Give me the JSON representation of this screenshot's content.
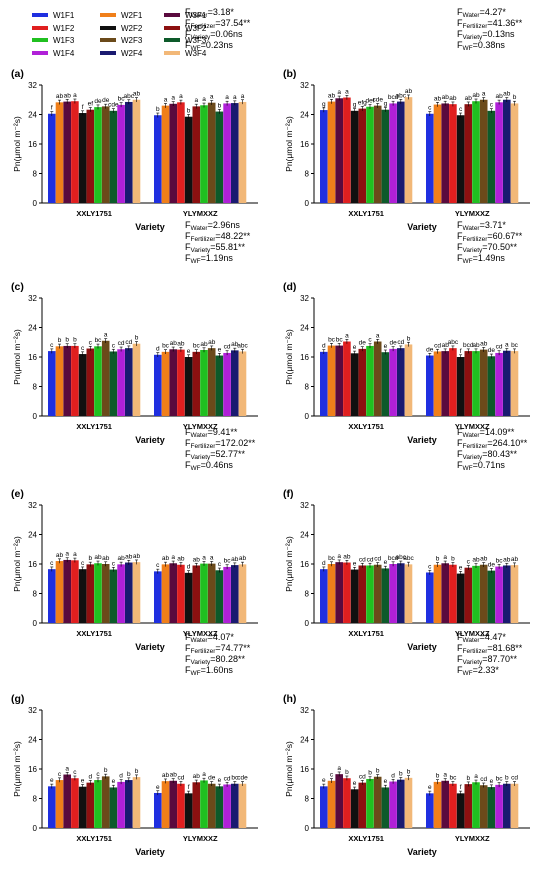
{
  "legend": {
    "items": [
      {
        "label": "W1F1",
        "color": "#1f2fe0"
      },
      {
        "label": "W2F1",
        "color": "#f07f1a"
      },
      {
        "label": "W3F1",
        "color": "#5a0a3e"
      },
      {
        "label": "W1F2",
        "color": "#e01f1f"
      },
      {
        "label": "W2F2",
        "color": "#101010"
      },
      {
        "label": "W3F2",
        "color": "#8c1010"
      },
      {
        "label": "W1F3",
        "color": "#20c020"
      },
      {
        "label": "W2F3",
        "color": "#6b4a1a"
      },
      {
        "label": "W3F3",
        "color": "#0d5a2a"
      },
      {
        "label": "W1F4",
        "color": "#b020d8"
      },
      {
        "label": "W2F4",
        "color": "#1a1a70"
      },
      {
        "label": "W3F4",
        "color": "#f2b878"
      }
    ]
  },
  "chart_data": [
    {
      "panel": "(a)",
      "type": "bar",
      "ylabel": "Pn(μmol m⁻²s)",
      "xlabel": "Variety",
      "ylim": [
        0,
        32
      ],
      "yticks": [
        0,
        8,
        16,
        24,
        32
      ],
      "categories": [
        "XXLY1751",
        "YLYMXXZ"
      ],
      "stats": [
        "F_Water=3.18*",
        "F_Fertilizer=37.54**",
        "F_Variety=0.06ns",
        "F_WF=0.23ns"
      ],
      "groups": [
        {
          "values": [
            24.2,
            27.3,
            27.5,
            27.6,
            24.4,
            25.3,
            26.0,
            26.2,
            25.0,
            26.6,
            27.4,
            28.0
          ],
          "labels": [
            "f",
            "ab",
            "ab",
            "a",
            "f",
            "ef",
            "de",
            "de",
            "cde",
            "bc",
            "abc",
            "ab"
          ]
        },
        {
          "values": [
            23.8,
            26.4,
            26.9,
            27.3,
            23.4,
            26.2,
            26.5,
            27.2,
            24.8,
            27.0,
            27.1,
            27.4
          ],
          "labels": [
            "b",
            "a",
            "a",
            "a",
            "b",
            "a",
            "a",
            "a",
            "b",
            "a",
            "a",
            "a"
          ]
        }
      ]
    },
    {
      "panel": "(b)",
      "type": "bar",
      "ylabel": "Pn(μmol m⁻²s)",
      "xlabel": "Variety",
      "ylim": [
        0,
        32
      ],
      "yticks": [
        0,
        8,
        16,
        24,
        32
      ],
      "categories": [
        "XXLY1751",
        "YLYMXXZ"
      ],
      "stats": [
        "F_Water=4.27*",
        "F_Fertilizer=41.36**",
        "F_Variety=0.13ns",
        "F_WF=0.38ns"
      ],
      "groups": [
        {
          "values": [
            25.2,
            27.5,
            28.4,
            28.6,
            25.0,
            25.6,
            26.1,
            26.4,
            25.3,
            27.0,
            27.5,
            28.7
          ],
          "labels": [
            "g",
            "ab",
            "a",
            "a",
            "g",
            "efg",
            "def",
            "cde",
            "g",
            "bcd",
            "abc",
            "ab"
          ]
        },
        {
          "values": [
            24.2,
            26.7,
            27.0,
            26.8,
            23.8,
            26.8,
            27.6,
            28.0,
            25.0,
            27.3,
            28.0,
            27.0
          ],
          "labels": [
            "c",
            "ab",
            "ab",
            "ab",
            "c",
            "ab",
            "ab",
            "a",
            "c",
            "ab",
            "ab",
            "b"
          ]
        }
      ]
    },
    {
      "panel": "(c)",
      "type": "bar",
      "ylabel": "Pn(μmol m⁻²s)",
      "xlabel": "Variety",
      "ylim": [
        0,
        32
      ],
      "yticks": [
        0,
        8,
        16,
        24,
        32
      ],
      "categories": [
        "XXLY1751",
        "YLYMXXZ"
      ],
      "stats": [
        "F_Water=2.96ns",
        "F_Fertilizer=48.22**",
        "F_Variety=55.81**",
        "F_WF=1.19ns"
      ],
      "groups": [
        {
          "values": [
            17.6,
            18.9,
            19.0,
            19.0,
            16.8,
            18.3,
            18.9,
            20.4,
            17.5,
            18.1,
            18.4,
            19.6
          ],
          "labels": [
            "c",
            "b",
            "b",
            "b",
            "c",
            "c",
            "bc",
            "a",
            "c",
            "cd",
            "cd",
            "b"
          ]
        },
        {
          "values": [
            16.6,
            17.4,
            18.1,
            18.0,
            16.0,
            17.4,
            17.9,
            18.4,
            16.4,
            17.1,
            17.8,
            17.5
          ],
          "labels": [
            "d",
            "bc",
            "ab",
            "ab",
            "e",
            "bc",
            "ab",
            "ab",
            "e",
            "cd",
            "ab",
            "abc"
          ]
        }
      ]
    },
    {
      "panel": "(d)",
      "type": "bar",
      "ylabel": "Pn(μmol m⁻²s)",
      "xlabel": "Variety",
      "ylim": [
        0,
        32
      ],
      "yticks": [
        0,
        8,
        16,
        24,
        32
      ],
      "categories": [
        "XXLY1751",
        "YLYMXXZ"
      ],
      "stats": [
        "F_Water=3.71*",
        "F_Fertilizer=60.67**",
        "F_Variety=70.50**",
        "F_WF=1.49ns"
      ],
      "groups": [
        {
          "values": [
            17.4,
            19.1,
            19.1,
            20.2,
            17.0,
            18.2,
            19.0,
            20.2,
            17.3,
            18.2,
            18.4,
            19.4
          ],
          "labels": [
            "d",
            "bc",
            "bc",
            "a",
            "e",
            "de",
            "c",
            "a",
            "e",
            "de",
            "cd",
            "b"
          ]
        },
        {
          "values": [
            16.4,
            17.5,
            17.6,
            18.4,
            16.0,
            17.6,
            17.6,
            18.0,
            16.2,
            17.1,
            17.7,
            17.6
          ],
          "labels": [
            "de",
            "cd",
            "ab",
            "abc",
            "f",
            "bcd",
            "ab",
            "ab",
            "de",
            "cd",
            "a",
            "bc"
          ]
        }
      ]
    },
    {
      "panel": "(e)",
      "type": "bar",
      "ylabel": "Pn(μmol m⁻²s)",
      "xlabel": "Variety",
      "ylim": [
        0,
        32
      ],
      "yticks": [
        0,
        8,
        16,
        24,
        32
      ],
      "categories": [
        "XXLY1751",
        "YLYMXXZ"
      ],
      "stats": [
        "F_Water=9.41**",
        "F_Fertilizer=172.02**",
        "F_Variety=52.77**",
        "F_WF=0.46ns"
      ],
      "groups": [
        {
          "values": [
            14.6,
            16.8,
            17.1,
            17.0,
            14.6,
            15.9,
            16.2,
            16.0,
            14.5,
            15.9,
            16.4,
            16.5
          ],
          "labels": [
            "c",
            "ab",
            "a",
            "a",
            "c",
            "b",
            "ab",
            "ab",
            "c",
            "ab",
            "ab",
            "ab"
          ]
        },
        {
          "values": [
            14.0,
            15.9,
            16.2,
            15.8,
            13.6,
            15.6,
            16.1,
            16.1,
            14.3,
            15.2,
            15.7,
            15.9
          ],
          "labels": [
            "c",
            "ab",
            "a",
            "ab",
            "d",
            "ab",
            "a",
            "a",
            "c",
            "bc",
            "ab",
            "ab"
          ]
        }
      ]
    },
    {
      "panel": "(f)",
      "type": "bar",
      "ylabel": "Pn(μmol m⁻²s)",
      "xlabel": "Variety",
      "ylim": [
        0,
        32
      ],
      "yticks": [
        0,
        8,
        16,
        24,
        32
      ],
      "categories": [
        "XXLY1751",
        "YLYMXXZ"
      ],
      "stats": [
        "F_Water=14.09**",
        "F_Fertilizer=264.10**",
        "F_Variety=80.43**",
        "F_WF=0.71ns"
      ],
      "groups": [
        {
          "values": [
            14.6,
            16.0,
            16.5,
            16.4,
            14.5,
            15.6,
            15.6,
            15.8,
            14.8,
            16.0,
            16.2,
            15.9
          ],
          "labels": [
            "d",
            "bc",
            "a",
            "ab",
            "e",
            "cd",
            "cd",
            "cd",
            "e",
            "bcd",
            "abc",
            "abc"
          ]
        },
        {
          "values": [
            13.7,
            15.8,
            16.2,
            15.8,
            13.4,
            15.0,
            15.5,
            15.8,
            14.2,
            15.3,
            15.6,
            15.7
          ],
          "labels": [
            "c",
            "b",
            "a",
            "b",
            "e",
            "c",
            "ab",
            "ab",
            "de",
            "bc",
            "ab",
            "ab"
          ]
        }
      ]
    },
    {
      "panel": "(g)",
      "type": "bar",
      "ylabel": "Pn(μmol m⁻²s)",
      "xlabel": "Variety",
      "ylim": [
        0,
        32
      ],
      "yticks": [
        0,
        8,
        16,
        24,
        32
      ],
      "categories": [
        "XXLY1751",
        "YLYMXXZ"
      ],
      "stats": [
        "F_Water=4.07*",
        "F_Fertilizer=74.77**",
        "F_Variety=80.28**",
        "F_WF=1.60ns"
      ],
      "groups": [
        {
          "values": [
            11.3,
            13.0,
            14.5,
            13.5,
            11.2,
            12.3,
            13.0,
            14.0,
            11.0,
            12.5,
            13.0,
            13.8
          ],
          "labels": [
            "e",
            "c",
            "a",
            "c",
            "e",
            "d",
            "c",
            "b",
            "e",
            "d",
            "b",
            "b"
          ]
        },
        {
          "values": [
            9.5,
            12.7,
            12.8,
            12.0,
            9.4,
            12.4,
            12.9,
            12.0,
            11.3,
            11.8,
            12.0,
            12.0
          ],
          "labels": [
            "e",
            "ab",
            "ab",
            "cd",
            "f",
            "ab",
            "a",
            "de",
            "e",
            "cd",
            "bc",
            "cde"
          ]
        }
      ]
    },
    {
      "panel": "(h)",
      "type": "bar",
      "ylabel": "Pn(μmol m⁻²s)",
      "xlabel": "Variety",
      "ylim": [
        0,
        32
      ],
      "yticks": [
        0,
        8,
        16,
        24,
        32
      ],
      "categories": [
        "XXLY1751",
        "YLYMXXZ"
      ],
      "stats": [
        "F_Water=4.47*",
        "F_Fertilizer=81.68**",
        "F_Variety=87.70**",
        "F_WF=2.33*"
      ],
      "groups": [
        {
          "values": [
            11.3,
            12.8,
            14.6,
            13.5,
            10.5,
            12.3,
            13.3,
            13.9,
            11.0,
            12.6,
            13.1,
            13.6
          ],
          "labels": [
            "e",
            "c",
            "a",
            "b",
            "e",
            "cd",
            "b",
            "b",
            "e",
            "d",
            "b",
            "b"
          ]
        },
        {
          "values": [
            9.4,
            12.5,
            12.8,
            12.0,
            9.4,
            11.9,
            12.4,
            11.6,
            11.1,
            11.7,
            12.0,
            12.0
          ],
          "labels": [
            "e",
            "b",
            "a",
            "bc",
            "f",
            "b",
            "a",
            "cd",
            "e",
            "bc",
            "b",
            "cd"
          ]
        }
      ]
    }
  ]
}
